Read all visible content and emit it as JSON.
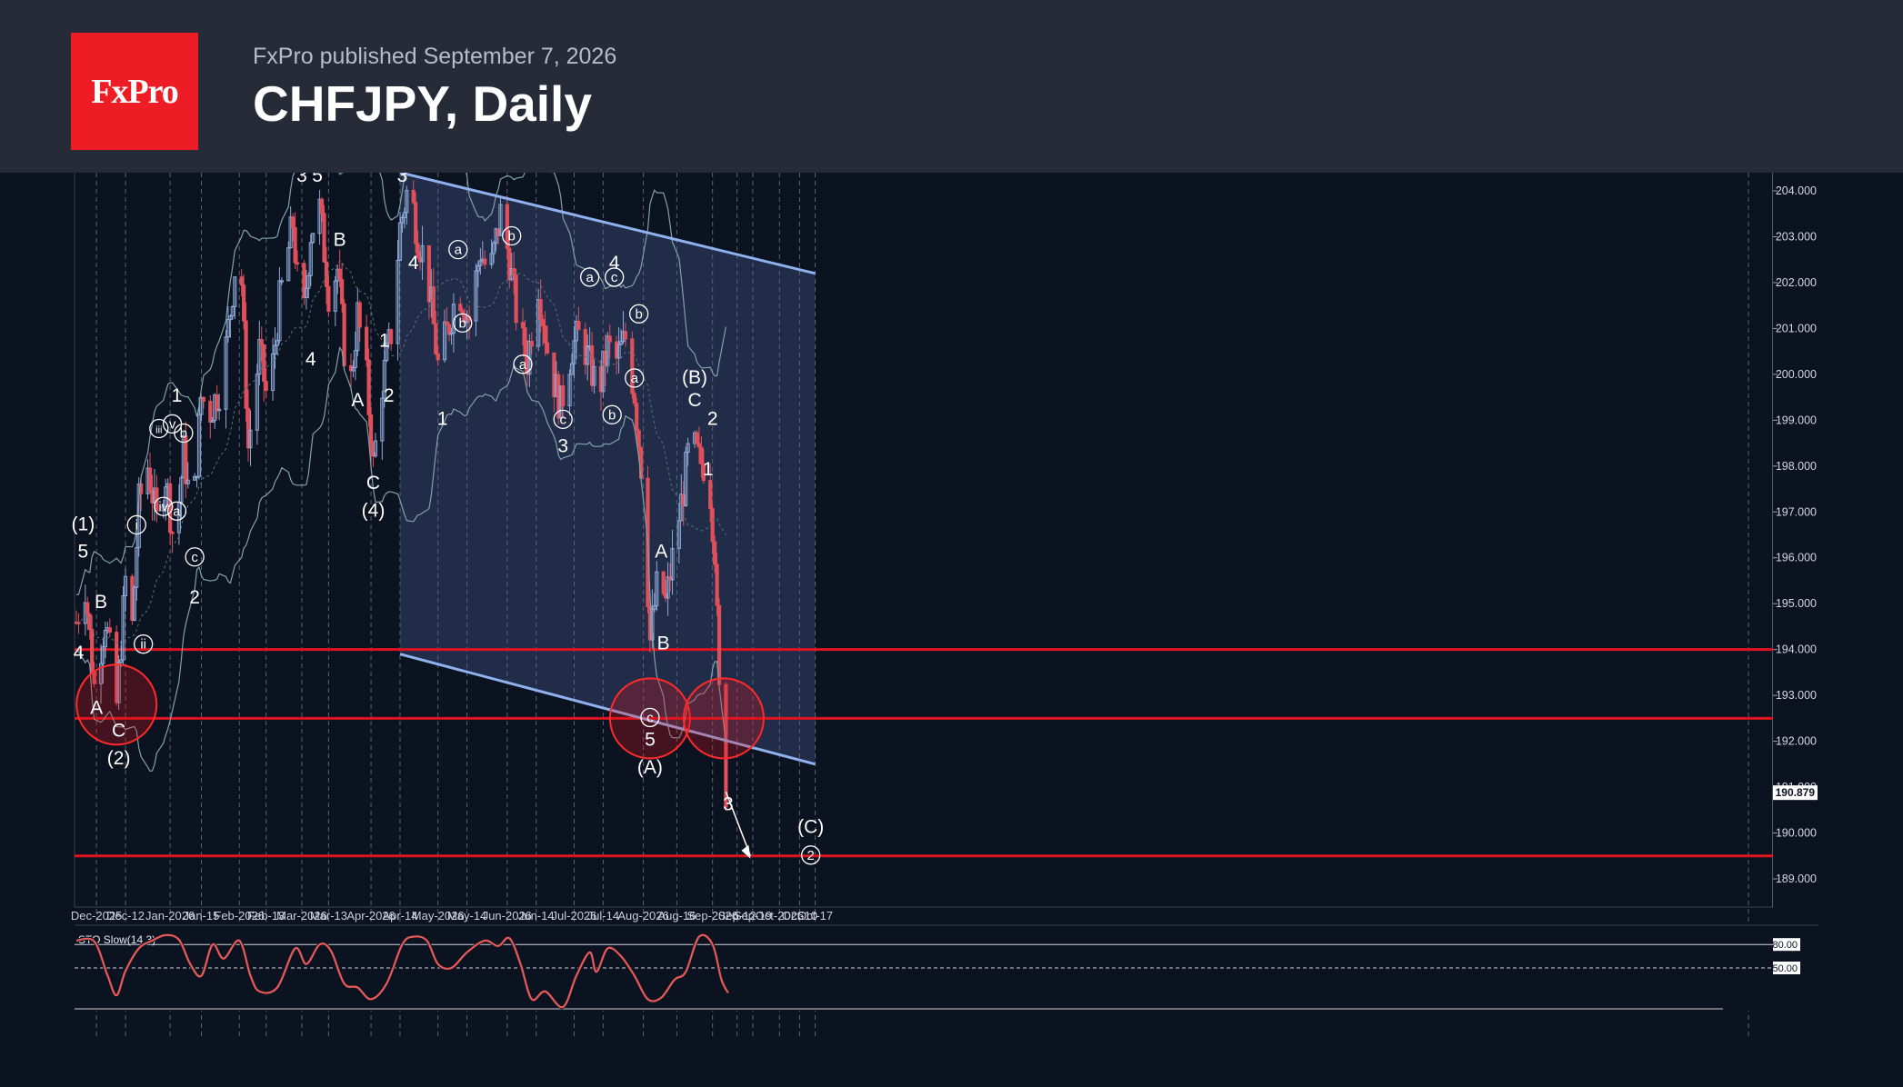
{
  "header": {
    "logo_text": "FxPro",
    "byline": "FxPro published September 7, 2026",
    "title": "CHFJPY, Daily"
  },
  "colors": {
    "background": "#0b1220",
    "header": "#272b38",
    "logo": "#ee1c25",
    "candle_up": "#8ea9d6",
    "candle_down": "#e0505a",
    "level_line": "#e0141e",
    "channel_line": "#8fb1ee",
    "oscillator": "#e85a5a"
  },
  "chart_data": {
    "type": "candlestick",
    "symbol": "CHFJPY",
    "timeframe": "Daily",
    "ylim": [
      188.5,
      204.3
    ],
    "y_ticks": [
      "204.000",
      "203.000",
      "202.000",
      "201.000",
      "200.000",
      "199.000",
      "198.000",
      "197.000",
      "196.000",
      "195.000",
      "194.000",
      "193.000",
      "192.000",
      "191.000",
      "190.000",
      "189.000"
    ],
    "current_price": "190.879",
    "x_ticks": [
      "Dec-2025",
      "Dec-12",
      "Jan-2026",
      "Jan-15",
      "Feb-2026",
      "Feb-13",
      "Mar-2026",
      "Mar-13",
      "Apr-2026",
      "Apr-14",
      "May-2026",
      "May-14",
      "Jun-2026",
      "Jun-14",
      "Jul-2026",
      "Jul-14",
      "Aug-2026",
      "Aug-16",
      "Sep-2026",
      "Sep-12",
      "Sep-19",
      "Oct-2026",
      "Oct-10",
      "Oct-17"
    ],
    "price_path": [
      [
        "Nov-20-2025",
        194.6
      ],
      [
        "Nov-24-2025",
        195.4
      ],
      [
        "Nov-28-2025",
        193.2
      ],
      [
        "Dec-03-2025",
        194.7
      ],
      [
        "Dec-08-2025",
        192.8
      ],
      [
        "Dec-12-2025",
        195.5
      ],
      [
        "Dec-15-2025",
        194.5
      ],
      [
        "Dec-18-2025",
        197.2
      ],
      [
        "Dec-22-2025",
        198.0
      ],
      [
        "Dec-26-2025",
        196.8
      ],
      [
        "Dec-30-2025",
        197.8
      ],
      [
        "Jan-03-2026",
        196.2
      ],
      [
        "Jan-07-2026",
        198.3
      ],
      [
        "Jan-11-2026",
        196.8
      ],
      [
        "Jan-15-2026",
        199.5
      ],
      [
        "Jan-19-2026",
        199.2
      ],
      [
        "Jan-24-2026",
        199.8
      ],
      [
        "Jan-28-2026",
        201.4
      ],
      [
        "Feb-01-2026",
        203.2
      ],
      [
        "Feb-05-2026",
        198.4
      ],
      [
        "Feb-10-2026",
        200.5
      ],
      [
        "Feb-14-2026",
        199.3
      ],
      [
        "Feb-19-2026",
        201.6
      ],
      [
        "Feb-25-2026",
        203.3
      ],
      [
        "Mar-01-2026",
        200.8
      ],
      [
        "Mar-05-2026",
        203.1
      ],
      [
        "Mar-09-2026",
        203.6
      ],
      [
        "Mar-13-2026",
        201.8
      ],
      [
        "Mar-17-2026",
        202.3
      ],
      [
        "Mar-22-2026",
        199.4
      ],
      [
        "Mar-26-2026",
        201.3
      ],
      [
        "Mar-30-2026",
        199.9
      ],
      [
        "Apr-02-2026",
        198.0
      ],
      [
        "Apr-06-2026",
        199.8
      ],
      [
        "Apr-10-2026",
        200.9
      ],
      [
        "Apr-14-2026",
        203.2
      ],
      [
        "Apr-18-2026",
        204.2
      ],
      [
        "Apr-22-2026",
        203.0
      ],
      [
        "Apr-26-2026",
        202.3
      ],
      [
        "May-01-2026",
        200.2
      ],
      [
        "May-06-2026",
        201.1
      ],
      [
        "May-10-2026",
        201.9
      ],
      [
        "May-15-2026",
        201.2
      ],
      [
        "May-20-2026",
        202.7
      ],
      [
        "May-24-2026",
        202.1
      ],
      [
        "May-29-2026",
        203.5
      ],
      [
        "Jun-02-2026",
        202.5
      ],
      [
        "Jun-06-2026",
        201.0
      ],
      [
        "Jun-10-2026",
        200.3
      ],
      [
        "Jun-15-2026",
        202.0
      ],
      [
        "Jun-20-2026",
        200.2
      ],
      [
        "Jun-25-2026",
        199.3
      ],
      [
        "Jun-30-2026",
        200.6
      ],
      [
        "Jul-04-2026",
        200.9
      ],
      [
        "Jul-08-2026",
        200.2
      ],
      [
        "Jul-12-2026",
        199.6
      ],
      [
        "Jul-16-2026",
        200.6
      ],
      [
        "Jul-20-2026",
        200.3
      ],
      [
        "Jul-24-2026",
        200.8
      ],
      [
        "Jul-28-2026",
        199.6
      ],
      [
        "Aug-01-2026",
        197.5
      ],
      [
        "Aug-04-2026",
        194.2
      ],
      [
        "Aug-08-2026",
        195.7
      ],
      [
        "Aug-11-2026",
        195.0
      ],
      [
        "Aug-15-2026",
        196.3
      ],
      [
        "Aug-19-2026",
        197.5
      ],
      [
        "Aug-22-2026",
        198.6
      ],
      [
        "Aug-26-2026",
        198.1
      ],
      [
        "Aug-30-2026",
        198.0
      ],
      [
        "Sep-02-2026",
        196.2
      ],
      [
        "Sep-04-2026",
        193.0
      ],
      [
        "Sep-07-2026",
        190.9
      ]
    ],
    "levels": [
      194.0,
      192.5,
      189.5
    ],
    "channel": {
      "upper": [
        [
          "Apr-14-2026",
          204.4
        ],
        [
          "Oct-17-2026",
          202.2
        ]
      ],
      "lower": [
        [
          "Apr-14-2026",
          193.9
        ],
        [
          "Oct-17-2026",
          191.5
        ]
      ]
    },
    "wave_labels": [
      [
        "(1)",
        "Nov-23-2025",
        196.6
      ],
      [
        "5",
        "Nov-23-2025",
        196.0
      ],
      [
        "4",
        "Nov-21-2025",
        193.8
      ],
      [
        "B",
        "Dec-01-2025",
        194.9
      ],
      [
        "A",
        "Nov-29-2025",
        192.6
      ],
      [
        "C",
        "Dec-09-2025",
        192.1
      ],
      [
        "(2)",
        "Dec-09-2025",
        191.5
      ],
      [
        "i",
        "Dec-17-2025",
        196.6
      ],
      [
        "ii",
        "Dec-20-2025",
        194.0
      ],
      [
        "iii",
        "Dec-27-2025",
        198.7
      ],
      [
        "iv",
        "Dec-29-2025",
        197.0
      ],
      [
        "v",
        "Jan-02-2026",
        198.8
      ],
      [
        "a",
        "Jan-04-2026",
        196.9
      ],
      [
        "b",
        "Jan-07-2026",
        198.6
      ],
      [
        "c",
        "Jan-12-2026",
        195.9
      ],
      [
        "1",
        "Jan-04-2026",
        199.4
      ],
      [
        "2",
        "Jan-12-2026",
        195.0
      ],
      [
        "3",
        "Mar-01-2026",
        204.2
      ],
      [
        "5",
        "Mar-08-2026",
        204.2
      ],
      [
        "4",
        "Mar-05-2026",
        200.2
      ],
      [
        "B",
        "Mar-18-2026",
        202.8
      ],
      [
        "A",
        "Mar-26-2026",
        199.3
      ],
      [
        "C",
        "Apr-02-2026",
        197.5
      ],
      [
        "(4)",
        "Apr-02-2026",
        196.9
      ],
      [
        "1",
        "Apr-07-2026",
        200.6
      ],
      [
        "2",
        "Apr-09-2026",
        199.4
      ],
      [
        "3",
        "Apr-15-2026",
        204.2
      ],
      [
        "4",
        "Apr-20-2026",
        202.3
      ],
      [
        "1",
        "May-03-2026",
        198.9
      ],
      [
        "a",
        "May-10-2026",
        202.6
      ],
      [
        "b",
        "May-12-2026",
        201.0
      ],
      [
        "b",
        "Jun-03-2026",
        202.9
      ],
      [
        "a",
        "Jun-08-2026",
        200.1
      ],
      [
        "c",
        "Jun-26-2026",
        198.9
      ],
      [
        "3",
        "Jun-26-2026",
        198.3
      ],
      [
        "a",
        "Jul-08-2026",
        202.0
      ],
      [
        "4",
        "Jul-19-2026",
        202.3
      ],
      [
        "c",
        "Jul-19-2026",
        202.0
      ],
      [
        "b",
        "Jul-18-2026",
        199.0
      ],
      [
        "b",
        "Jul-30-2026",
        201.2
      ],
      [
        "a",
        "Jul-28-2026",
        199.8
      ],
      [
        "A",
        "Aug-09-2026",
        196.0
      ],
      [
        "B",
        "Aug-10-2026",
        194.0
      ],
      [
        "c",
        "Aug-04-2026",
        192.4
      ],
      [
        "5",
        "Aug-04-2026",
        191.9
      ],
      [
        "(A)",
        "Aug-04-2026",
        191.3
      ],
      [
        "(B)",
        "Aug-24-2026",
        199.8
      ],
      [
        "C",
        "Aug-24-2026",
        199.3
      ],
      [
        "1",
        "Aug-30-2026",
        197.8
      ],
      [
        "2",
        "Sep-01-2026",
        198.9
      ],
      [
        "3",
        "Sep-08-2026",
        190.5
      ],
      [
        "(C)",
        "Oct-15-2026",
        190.0
      ],
      [
        "2",
        "Oct-15-2026",
        189.4
      ]
    ],
    "oscillator": {
      "name": "STO Slow(14,3)",
      "levels": [
        "80.00",
        "50.00"
      ],
      "ylim": [
        0,
        100
      ],
      "values": [
        [
          "Nov-20-2025",
          85
        ],
        [
          "Nov-28-2025",
          84
        ],
        [
          "Dec-04-2025",
          40
        ],
        [
          "Dec-08-2025",
          15
        ],
        [
          "Dec-12-2025",
          46
        ],
        [
          "Dec-18-2025",
          75
        ],
        [
          "Dec-24-2025",
          85
        ],
        [
          "Dec-30-2025",
          92
        ],
        [
          "Jan-05-2026",
          86
        ],
        [
          "Jan-10-2026",
          55
        ],
        [
          "Jan-15-2026",
          40
        ],
        [
          "Jan-20-2026",
          80
        ],
        [
          "Jan-25-2026",
          62
        ],
        [
          "Feb-01-2026",
          85
        ],
        [
          "Feb-06-2026",
          40
        ],
        [
          "Feb-10-2026",
          20
        ],
        [
          "Feb-18-2026",
          25
        ],
        [
          "Feb-26-2026",
          75
        ],
        [
          "Mar-03-2026",
          55
        ],
        [
          "Mar-09-2026",
          80
        ],
        [
          "Mar-14-2026",
          72
        ],
        [
          "Mar-20-2026",
          30
        ],
        [
          "Mar-26-2026",
          25
        ],
        [
          "Apr-01-2026",
          10
        ],
        [
          "Apr-08-2026",
          30
        ],
        [
          "Apr-15-2026",
          80
        ],
        [
          "Apr-20-2026",
          90
        ],
        [
          "Apr-26-2026",
          85
        ],
        [
          "May-01-2026",
          55
        ],
        [
          "May-07-2026",
          50
        ],
        [
          "May-14-2026",
          70
        ],
        [
          "May-22-2026",
          85
        ],
        [
          "May-28-2026",
          78
        ],
        [
          "Jun-02-2026",
          88
        ],
        [
          "Jun-07-2026",
          55
        ],
        [
          "Jun-12-2026",
          10
        ],
        [
          "Jun-18-2026",
          20
        ],
        [
          "Jun-26-2026",
          0
        ],
        [
          "Jul-02-2026",
          40
        ],
        [
          "Jul-08-2026",
          70
        ],
        [
          "Jul-11-2026",
          45
        ],
        [
          "Jul-16-2026",
          75
        ],
        [
          "Jul-22-2026",
          65
        ],
        [
          "Jul-28-2026",
          40
        ],
        [
          "Aug-03-2026",
          10
        ],
        [
          "Aug-09-2026",
          12
        ],
        [
          "Aug-15-2026",
          35
        ],
        [
          "Aug-20-2026",
          45
        ],
        [
          "Aug-26-2026",
          90
        ],
        [
          "Sep-01-2026",
          80
        ],
        [
          "Sep-05-2026",
          35
        ],
        [
          "Sep-08-2026",
          18
        ]
      ]
    }
  }
}
